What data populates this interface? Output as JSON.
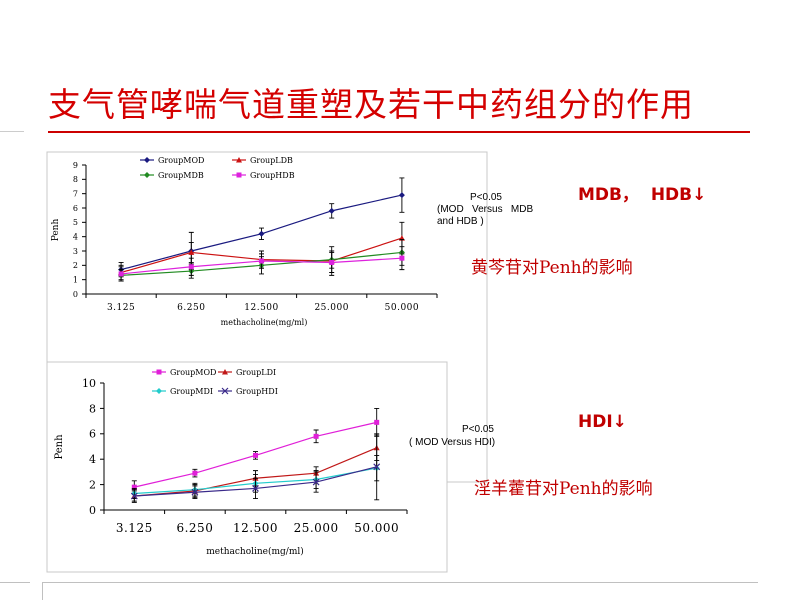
{
  "slide": {
    "title": "支气管哮喘气道重塑及若干中药组分的作用"
  },
  "panel1": {
    "p_value": "P<0.05",
    "comparison": "(MOD   Versus   MDB",
    "comparison2": "and HDB )",
    "tag": "MDB，  HDB↓",
    "caption": "黄芩苷对Penh的影响"
  },
  "panel2": {
    "p_value": "P<0.05",
    "comparison": "( MOD Versus HDI)",
    "tag": "HDI↓",
    "caption": "淫羊藿苷对Penh的影响"
  },
  "chart_data": [
    {
      "type": "line",
      "categories": [
        "3.125",
        "6.250",
        "12.500",
        "25.000",
        "50.000"
      ],
      "xlabel": "methacholine(mg/ml)",
      "ylabel": "Penh",
      "ylim": [
        0,
        9
      ],
      "yticks": [
        0,
        1,
        2,
        3,
        4,
        5,
        6,
        7,
        8,
        9
      ],
      "grid": false,
      "legend_placement": "top-left",
      "series": [
        {
          "name": "GroupMOD",
          "color": "#1a1a80",
          "marker": "diamond",
          "values": [
            1.7,
            3.0,
            4.2,
            5.8,
            6.9
          ],
          "errors": [
            0.5,
            1.3,
            0.4,
            0.5,
            1.2
          ]
        },
        {
          "name": "GroupLDB",
          "color": "#cc1111",
          "marker": "triangle",
          "values": [
            1.5,
            2.9,
            2.4,
            2.3,
            3.9
          ],
          "errors": [
            0.5,
            0.7,
            0.6,
            1.0,
            1.1
          ]
        },
        {
          "name": "GroupMDB",
          "color": "#228b22",
          "marker": "diamond",
          "values": [
            1.3,
            1.6,
            2.0,
            2.4,
            2.9
          ],
          "errors": [
            0.4,
            0.5,
            0.6,
            0.6,
            0.9
          ]
        },
        {
          "name": "GroupHDB",
          "color": "#dd22dd",
          "marker": "square",
          "values": [
            1.4,
            1.9,
            2.3,
            2.2,
            2.5
          ],
          "errors": [
            0.5,
            0.6,
            0.5,
            0.7,
            0.8
          ]
        }
      ]
    },
    {
      "type": "line",
      "categories": [
        "3.125",
        "6.250",
        "12.500",
        "25.000",
        "50.000"
      ],
      "xlabel": "methacholine(mg/ml)",
      "ylabel": "Penh",
      "ylim": [
        0,
        10
      ],
      "yticks": [
        0,
        2,
        4,
        6,
        8,
        10
      ],
      "grid": false,
      "legend_placement": "top-left",
      "series": [
        {
          "name": "GroupMOD",
          "color": "#e01fd8",
          "marker": "square",
          "values": [
            1.8,
            2.9,
            4.3,
            5.8,
            6.9
          ],
          "errors": [
            0.5,
            0.3,
            0.3,
            0.5,
            1.1
          ]
        },
        {
          "name": "GroupLDI",
          "color": "#c01818",
          "marker": "triangle",
          "values": [
            1.1,
            1.5,
            2.5,
            2.9,
            4.9
          ],
          "errors": [
            0.4,
            0.5,
            0.6,
            0.5,
            1.0
          ]
        },
        {
          "name": "GroupMDI",
          "color": "#22cccc",
          "marker": "diamond",
          "values": [
            1.3,
            1.6,
            2.1,
            2.4,
            3.3
          ],
          "errors": [
            0.4,
            0.5,
            0.7,
            0.7,
            1.0
          ]
        },
        {
          "name": "GroupHDI",
          "color": "#3a2a8a",
          "marker": "cross",
          "values": [
            1.1,
            1.4,
            1.7,
            2.2,
            3.4
          ],
          "errors": [
            0.5,
            0.5,
            0.8,
            0.8,
            2.6
          ]
        }
      ]
    }
  ]
}
